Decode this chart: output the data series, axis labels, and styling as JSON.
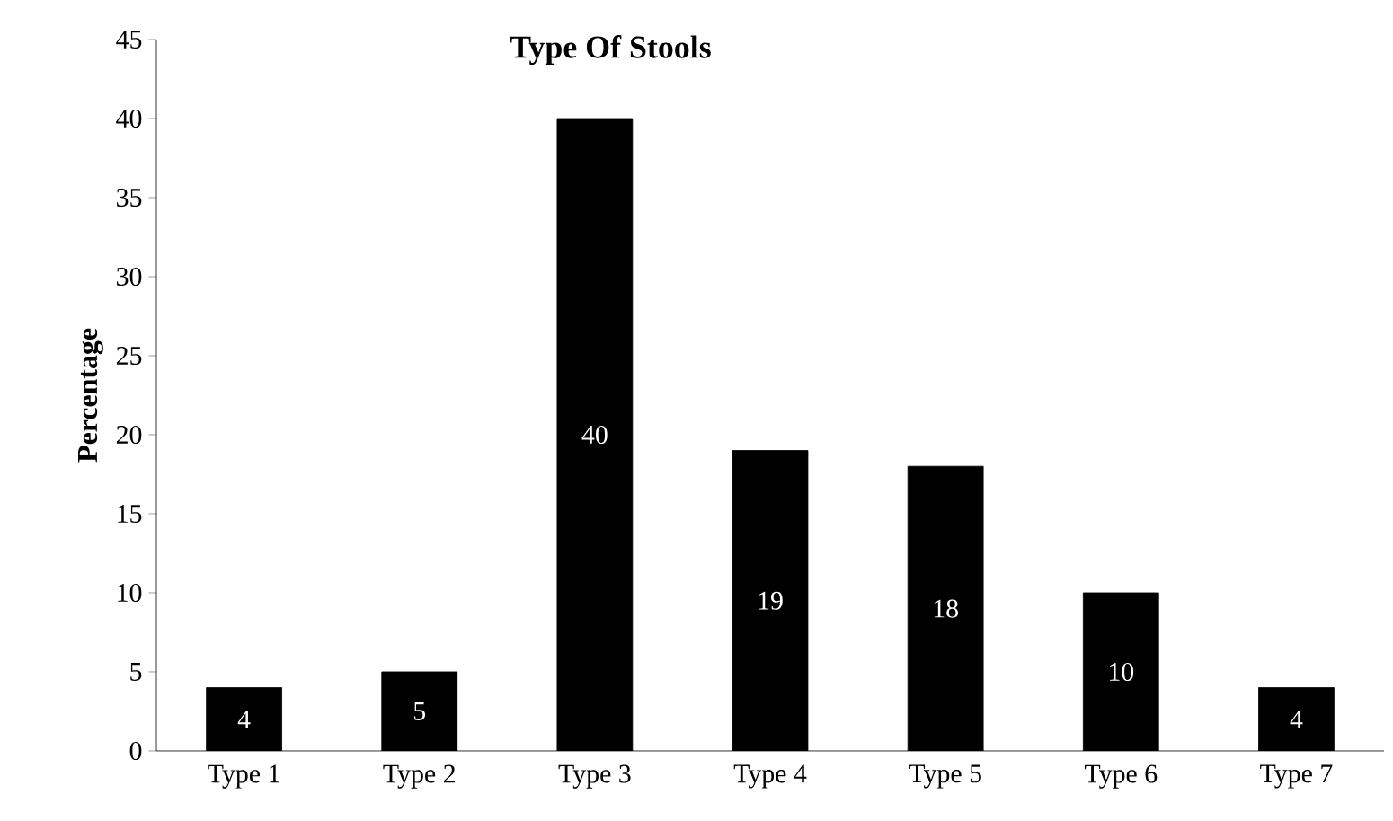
{
  "chart_data": {
    "type": "bar",
    "title": "Type Of Stools",
    "ylabel": "Percentage",
    "categories": [
      "Type 1",
      "Type 2",
      "Type 3",
      "Type 4",
      "Type 5",
      "Type 6",
      "Type 7"
    ],
    "values": [
      4,
      5,
      40,
      19,
      18,
      10,
      4
    ],
    "color": "#000000",
    "ylim": [
      0,
      45
    ],
    "yticks": [
      0,
      5,
      10,
      15,
      20,
      25,
      30,
      35,
      40,
      45
    ],
    "data_labels": true
  }
}
